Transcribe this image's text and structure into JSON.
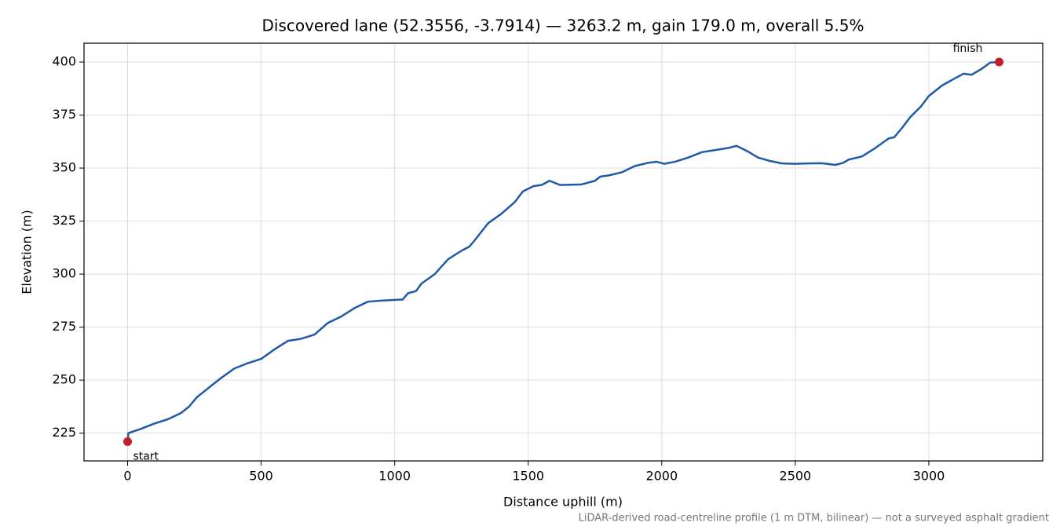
{
  "chart_data": {
    "type": "line",
    "title": "Discovered lane (52.3556, -3.7914) — 3263.2 m, gain 179.0 m, overall 5.5%",
    "xlabel": "Distance uphill (m)",
    "ylabel": "Elevation (m)",
    "footnote": "LiDAR-derived road-centreline profile (1 m DTM, bilinear) — not a surveyed asphalt gradient",
    "x": [
      0,
      3,
      50,
      100,
      150,
      200,
      230,
      260,
      300,
      350,
      400,
      450,
      500,
      550,
      600,
      650,
      700,
      750,
      800,
      850,
      900,
      950,
      1030,
      1050,
      1080,
      1100,
      1150,
      1200,
      1250,
      1280,
      1300,
      1350,
      1400,
      1450,
      1480,
      1520,
      1550,
      1580,
      1620,
      1700,
      1750,
      1770,
      1800,
      1850,
      1900,
      1950,
      1980,
      2010,
      2050,
      2100,
      2150,
      2200,
      2250,
      2280,
      2320,
      2360,
      2400,
      2450,
      2500,
      2550,
      2600,
      2650,
      2680,
      2700,
      2750,
      2800,
      2850,
      2870,
      2900,
      2930,
      2970,
      3000,
      3050,
      3100,
      3130,
      3160,
      3200,
      3230,
      3263.2
    ],
    "series": [
      {
        "color": "#1f5aa8",
        "values": [
          221,
          225,
          227,
          229.5,
          231.5,
          234.5,
          237.5,
          242,
          246,
          251,
          255.5,
          258,
          260,
          264.5,
          268.5,
          269.5,
          271.5,
          277,
          280,
          284,
          287,
          287.5,
          288,
          291,
          292,
          295.5,
          300,
          307,
          311,
          313,
          316,
          324,
          328.5,
          334,
          339,
          341.5,
          342,
          344,
          342,
          342.3,
          344,
          346,
          346.5,
          348,
          351,
          352.5,
          353,
          352,
          353,
          355,
          357.5,
          358.5,
          359.5,
          360.5,
          358,
          355,
          353.5,
          352.2,
          352,
          352.2,
          352.3,
          351.5,
          352.5,
          354,
          355.5,
          359.5,
          364,
          364.5,
          369,
          374,
          379,
          384,
          389,
          392.5,
          394.5,
          394,
          397,
          399.8,
          400
        ]
      }
    ],
    "points": [
      {
        "label": "start",
        "x": 0,
        "y": 221,
        "color": "#c41e2a"
      },
      {
        "label": "finish",
        "x": 3263.2,
        "y": 400,
        "color": "#c41e2a"
      }
    ],
    "xlim": [
      -163.2,
      3426.4
    ],
    "ylim": [
      211.9,
      408.9
    ],
    "xticks": [
      0,
      500,
      1000,
      1500,
      2000,
      2500,
      3000
    ],
    "yticks": [
      225,
      250,
      275,
      300,
      325,
      350,
      375,
      400
    ],
    "grid": true
  }
}
